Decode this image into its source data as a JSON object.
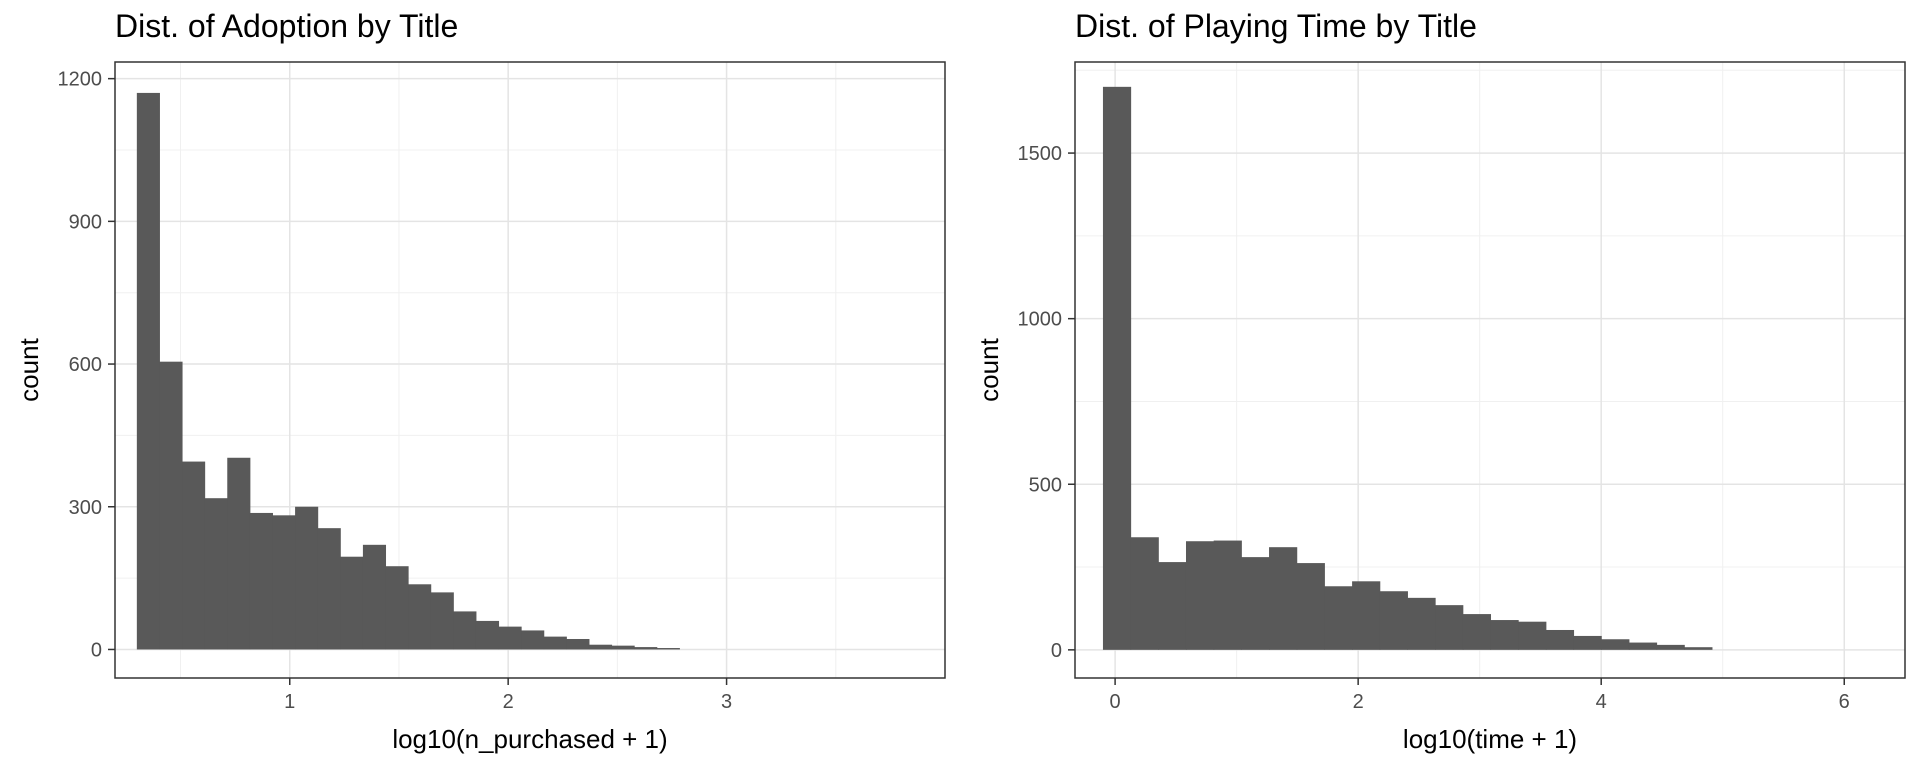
{
  "chart_data": [
    {
      "type": "bar",
      "title": "Dist. of Adoption by Title",
      "xlabel": "log10(n_purchased + 1)",
      "ylabel": "count",
      "xlim": [
        0.2,
        4.0
      ],
      "ylim": [
        -60,
        1235
      ],
      "xticks": [
        1,
        2,
        3
      ],
      "yticks": [
        0,
        300,
        600,
        900,
        1200
      ],
      "bin_start": 0.3,
      "bin_width": 0.1035,
      "values": [
        1170,
        605,
        395,
        318,
        403,
        287,
        282,
        300,
        255,
        195,
        220,
        175,
        137,
        120,
        80,
        60,
        48,
        40,
        27,
        22,
        10,
        8,
        5,
        3
      ],
      "grid": true,
      "bar_color": "#595959"
    },
    {
      "type": "bar",
      "title": "Dist. of Playing Time by Title",
      "xlabel": "log10(time + 1)",
      "ylabel": "count",
      "xlim": [
        -0.33,
        6.5
      ],
      "ylim": [
        -85,
        1775
      ],
      "xticks": [
        0,
        2,
        4,
        6
      ],
      "yticks": [
        0,
        500,
        1000,
        1500
      ],
      "bin_start": -0.1,
      "bin_width": 0.2278,
      "values": [
        1700,
        340,
        265,
        328,
        330,
        280,
        310,
        262,
        192,
        207,
        177,
        157,
        135,
        108,
        90,
        85,
        60,
        42,
        32,
        22,
        15,
        8
      ],
      "grid": true,
      "bar_color": "#595959"
    }
  ]
}
